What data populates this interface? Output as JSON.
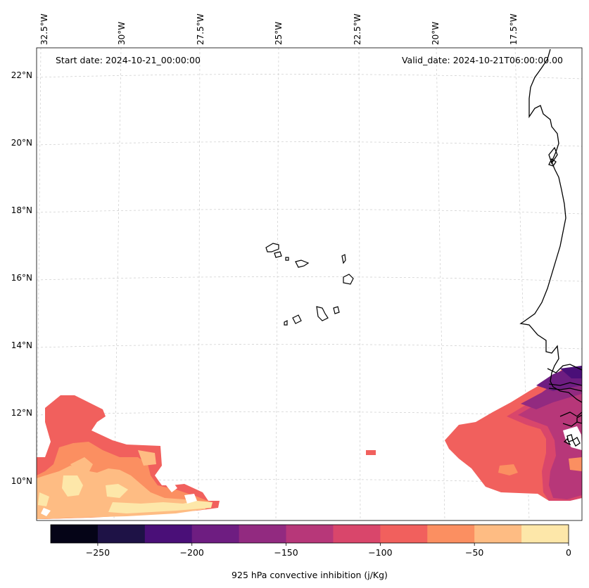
{
  "map": {
    "start_date": "Start date: 2024-10-21_00:00:00",
    "valid_date": "Valid_date: 2024-10-21T06:00:00.00",
    "longitude_labels": [
      "32.5°W",
      "30°W",
      "27.5°W",
      "25°W",
      "22.5°W",
      "20°W",
      "17.5°W"
    ],
    "latitude_labels": [
      "22°N",
      "20°N",
      "18°N",
      "16°N",
      "14°N",
      "12°N",
      "10°N"
    ],
    "field": "925 hPa convective inhibition"
  },
  "colorbar": {
    "label": "925 hPa convective inhibition (j/Kg)",
    "ticks": [
      "−250",
      "−200",
      "−150",
      "−100",
      "−50",
      "0"
    ],
    "bins": [
      {
        "from": -275,
        "to": -250,
        "color": "#050417"
      },
      {
        "from": -250,
        "to": -225,
        "color": "#1e1246"
      },
      {
        "from": -225,
        "to": -200,
        "color": "#4a0f78"
      },
      {
        "from": -200,
        "to": -175,
        "color": "#6e1d81"
      },
      {
        "from": -175,
        "to": -150,
        "color": "#922a80"
      },
      {
        "from": -150,
        "to": -125,
        "color": "#b73779"
      },
      {
        "from": -125,
        "to": -100,
        "color": "#d9466b"
      },
      {
        "from": -100,
        "to": -75,
        "color": "#f1605d"
      },
      {
        "from": -75,
        "to": -50,
        "color": "#fb8f61"
      },
      {
        "from": -50,
        "to": -25,
        "color": "#febc83"
      },
      {
        "from": -25,
        "to": 0,
        "color": "#fde7a9"
      }
    ]
  }
}
